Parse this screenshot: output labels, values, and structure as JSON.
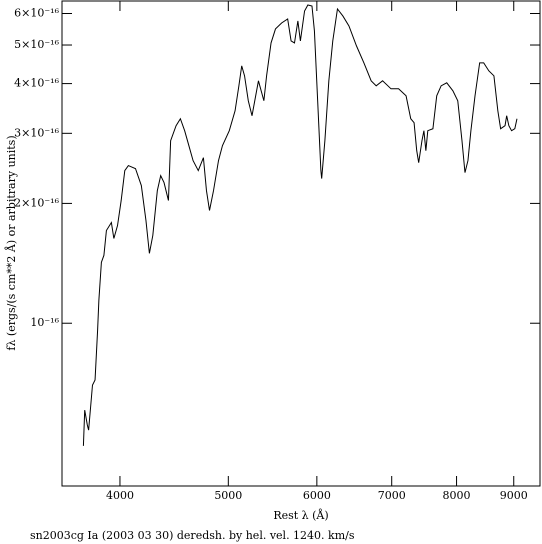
{
  "chart_data": {
    "type": "line",
    "title": "sn2003cg Ia (2003 03 30) deredsh. by hel. vel.  1240. km/s",
    "x_label": "Rest λ (Å)",
    "y_label": "fλ (ergs/(s cm**2 Å) or arbitrary units)",
    "xscale": "log",
    "yscale": "log",
    "xlim": [
      3550,
      9500
    ],
    "ylim": [
      3.9e-17,
      6.45e-16
    ],
    "xticks": [
      4000,
      5000,
      6000,
      7000,
      8000,
      9000
    ],
    "yticks": [
      {
        "value": 1e-16,
        "label": "10⁻¹⁶"
      },
      {
        "value": 2e-16,
        "label": "2×10⁻¹⁶"
      },
      {
        "value": 3e-16,
        "label": "3×10⁻¹⁶"
      },
      {
        "value": 4e-16,
        "label": "4×10⁻¹⁶"
      },
      {
        "value": 5e-16,
        "label": "5×10⁻¹⁶"
      },
      {
        "value": 6e-16,
        "label": "6×10⁻¹⁶"
      }
    ],
    "color": "#000000",
    "x": [
      3710,
      3720,
      3740,
      3750,
      3770,
      3780,
      3800,
      3820,
      3830,
      3850,
      3870,
      3890,
      3930,
      3950,
      3980,
      4010,
      4040,
      4070,
      4130,
      4180,
      4220,
      4250,
      4280,
      4320,
      4350,
      4380,
      4420,
      4440,
      4490,
      4530,
      4570,
      4610,
      4650,
      4700,
      4750,
      4780,
      4810,
      4850,
      4900,
      4940,
      5010,
      5070,
      5110,
      5140,
      5170,
      5210,
      5250,
      5290,
      5320,
      5380,
      5410,
      5460,
      5510,
      5580,
      5650,
      5690,
      5730,
      5770,
      5800,
      5850,
      5890,
      5940,
      5970,
      6010,
      6050,
      6060,
      6100,
      6150,
      6200,
      6260,
      6330,
      6410,
      6510,
      6610,
      6710,
      6780,
      6870,
      6990,
      7100,
      7210,
      7280,
      7330,
      7370,
      7400,
      7450,
      7480,
      7510,
      7540,
      7620,
      7680,
      7750,
      7840,
      7940,
      8020,
      8090,
      8140,
      8190,
      8240,
      8310,
      8390,
      8460,
      8550,
      8640,
      8710,
      8760,
      8840,
      8870,
      8910,
      8960,
      9020,
      9060
    ],
    "values": [
      4.92e-17,
      6.05e-17,
      5.55e-17,
      5.39e-17,
      6.41e-17,
      6.99e-17,
      7.2e-17,
      9.6e-17,
      1.142e-16,
      1.422e-16,
      1.481e-16,
      1.71e-16,
      1.791e-16,
      1.633e-16,
      1.76e-16,
      2.034e-16,
      2.418e-16,
      2.489e-16,
      2.446e-16,
      2.218e-16,
      1.812e-16,
      1.498e-16,
      1.662e-16,
      2.154e-16,
      2.349e-16,
      2.256e-16,
      2.034e-16,
      2.875e-16,
      3.135e-16,
      3.264e-16,
      3.046e-16,
      2.793e-16,
      2.562e-16,
      2.418e-16,
      2.606e-16,
      2.154e-16,
      1.92e-16,
      2.154e-16,
      2.562e-16,
      2.793e-16,
      3.046e-16,
      3.418e-16,
      3.949e-16,
      4.432e-16,
      4.184e-16,
      3.622e-16,
      3.321e-16,
      3.728e-16,
      4.065e-16,
      3.622e-16,
      4.184e-16,
      5.061e-16,
      5.487e-16,
      5.68e-16,
      5.813e-16,
      5.12e-16,
      5.061e-16,
      5.746e-16,
      5.12e-16,
      6.088e-16,
      6.302e-16,
      6.266e-16,
      5.424e-16,
      3.622e-16,
      2.418e-16,
      2.309e-16,
      2.875e-16,
      4.065e-16,
      5.12e-16,
      6.159e-16,
      5.915e-16,
      5.583e-16,
      4.975e-16,
      4.51e-16,
      4.065e-16,
      3.949e-16,
      4.065e-16,
      3.881e-16,
      3.881e-16,
      3.728e-16,
      3.264e-16,
      3.19e-16,
      2.714e-16,
      2.532e-16,
      2.875e-16,
      3.046e-16,
      2.714e-16,
      3.046e-16,
      3.081e-16,
      3.728e-16,
      3.949e-16,
      4.018e-16,
      3.837e-16,
      3.622e-16,
      2.875e-16,
      2.39e-16,
      2.562e-16,
      3.046e-16,
      3.728e-16,
      4.51e-16,
      4.51e-16,
      4.306e-16,
      4.184e-16,
      3.418e-16,
      3.081e-16,
      3.135e-16,
      3.321e-16,
      3.135e-16,
      3.046e-16,
      3.081e-16,
      3.264e-16
    ]
  }
}
